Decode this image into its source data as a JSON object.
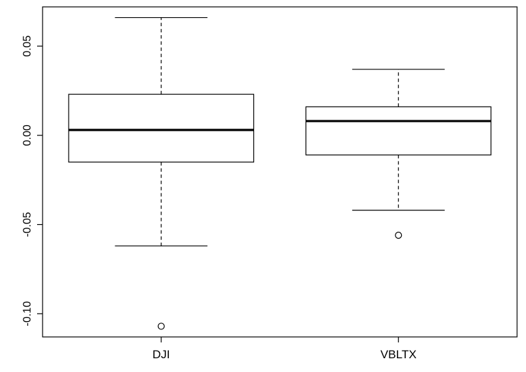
{
  "chart_data": {
    "type": "boxplot",
    "title": "",
    "xlabel": "",
    "ylabel": "",
    "ylim": [
      -0.113,
      0.072
    ],
    "y_ticks": [
      {
        "value": 0.05,
        "label": "0.05"
      },
      {
        "value": 0.0,
        "label": "0.00"
      },
      {
        "value": -0.05,
        "label": "-0.05"
      },
      {
        "value": -0.1,
        "label": "-0.10"
      }
    ],
    "categories": [
      "DJI",
      "VBLTX"
    ],
    "boxes": [
      {
        "category": "DJI",
        "whisker_low": -0.062,
        "q1": -0.015,
        "median": 0.003,
        "q3": 0.023,
        "whisker_high": 0.066,
        "outliers": [
          -0.107
        ]
      },
      {
        "category": "VBLTX",
        "whisker_low": -0.042,
        "q1": -0.011,
        "median": 0.008,
        "q3": 0.016,
        "whisker_high": 0.037,
        "outliers": [
          -0.056
        ]
      }
    ],
    "grid": false,
    "legend": "none"
  }
}
